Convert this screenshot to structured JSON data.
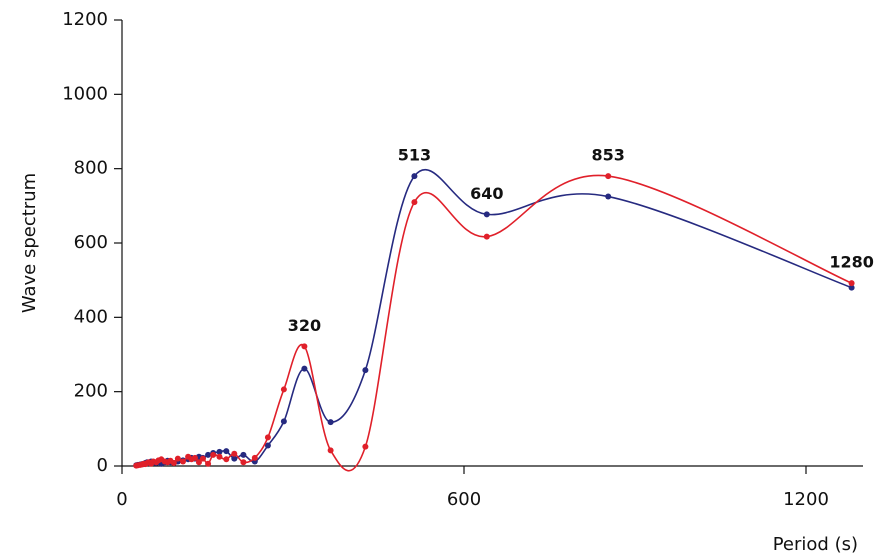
{
  "chart_data": {
    "type": "scatter-smooth",
    "y_label": "Wave spectrum",
    "x_label": "Period (s)",
    "x": [
      25,
      28,
      32,
      35,
      38,
      41,
      44,
      47,
      51,
      55,
      60,
      64,
      69,
      75,
      80,
      85,
      91,
      98,
      107,
      116,
      122,
      128,
      135,
      142,
      151,
      160,
      171,
      183,
      197,
      213,
      233,
      256,
      284,
      320,
      366,
      427,
      513,
      640,
      853,
      1280
    ],
    "series": [
      {
        "color": "#262a80",
        "values": [
          2,
          3,
          4,
          5,
          5,
          8,
          10,
          8,
          12,
          10,
          8,
          12,
          6,
          10,
          14,
          10,
          8,
          12,
          15,
          18,
          22,
          20,
          25,
          22,
          30,
          35,
          38,
          40,
          20,
          30,
          12,
          55,
          120,
          262,
          118,
          258,
          780,
          677,
          725,
          480
        ]
      },
      {
        "color": "#e0202a",
        "values": [
          1,
          2,
          3,
          4,
          6,
          5,
          8,
          10,
          6,
          12,
          10,
          15,
          18,
          12,
          10,
          14,
          8,
          20,
          12,
          25,
          18,
          22,
          10,
          20,
          6,
          30,
          25,
          18,
          33,
          10,
          22,
          77,
          206,
          322,
          42,
          52,
          710,
          617,
          780,
          492
        ]
      }
    ],
    "annotations": [
      {
        "text": "320",
        "x": 320
      },
      {
        "text": "513",
        "x": 513
      },
      {
        "text": "640",
        "x": 640
      },
      {
        "text": "853",
        "x": 853
      },
      {
        "text": "1280",
        "x": 1280
      }
    ],
    "xlim": [
      0,
      1300
    ],
    "xticks": [
      0,
      600,
      1200
    ],
    "ylim": [
      0,
      1200
    ],
    "yticks": [
      0,
      200,
      400,
      600,
      800,
      1000,
      1200
    ]
  }
}
